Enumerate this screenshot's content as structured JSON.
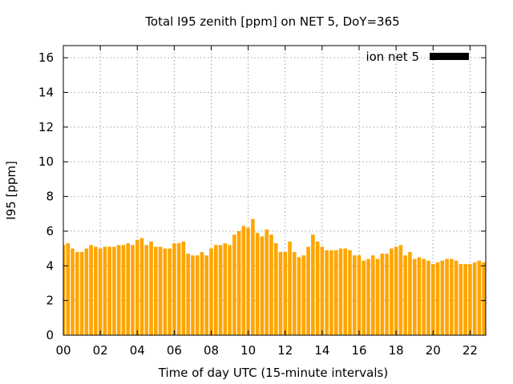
{
  "chart_data": {
    "type": "bar",
    "title": "Total I95 zenith [ppm] on NET 5, DoY=365",
    "xlabel": "Time of day UTC (15-minute intervals)",
    "ylabel": "I95 [ppm]",
    "ylim": [
      0,
      16.7
    ],
    "xlim": [
      0,
      22.85
    ],
    "xticks": [
      "00",
      "02",
      "04",
      "06",
      "08",
      "10",
      "12",
      "14",
      "16",
      "18",
      "20",
      "22"
    ],
    "yticks": [
      "0",
      "2",
      "4",
      "6",
      "8",
      "10",
      "12",
      "14",
      "16"
    ],
    "grid": true,
    "legend_position": "top-right",
    "bar_color": "#ffa500",
    "series": [
      {
        "name": "ion net 5",
        "legend_swatch_color": "#000000",
        "x_start_hour": 0,
        "interval_hours": 0.25,
        "values": [
          5.2,
          5.3,
          5.0,
          4.8,
          4.8,
          5.0,
          5.2,
          5.1,
          5.0,
          5.1,
          5.1,
          5.1,
          5.2,
          5.2,
          5.3,
          5.2,
          5.5,
          5.6,
          5.2,
          5.4,
          5.1,
          5.1,
          5.0,
          5.0,
          5.3,
          5.3,
          5.4,
          4.7,
          4.6,
          4.6,
          4.8,
          4.6,
          5.0,
          5.2,
          5.2,
          5.3,
          5.2,
          5.8,
          6.0,
          6.3,
          6.2,
          6.7,
          5.9,
          5.7,
          6.1,
          5.8,
          5.3,
          4.8,
          4.8,
          5.4,
          4.8,
          4.5,
          4.6,
          5.1,
          5.8,
          5.4,
          5.1,
          4.9,
          4.9,
          4.9,
          5.0,
          5.0,
          4.9,
          4.6,
          4.6,
          4.3,
          4.4,
          4.6,
          4.4,
          4.7,
          4.7,
          5.0,
          5.1,
          5.2,
          4.6,
          4.8,
          4.4,
          4.5,
          4.4,
          4.3,
          4.1,
          4.2,
          4.3,
          4.4,
          4.4,
          4.3,
          4.1,
          4.1,
          4.1,
          4.2,
          4.3,
          4.2
        ]
      }
    ]
  }
}
